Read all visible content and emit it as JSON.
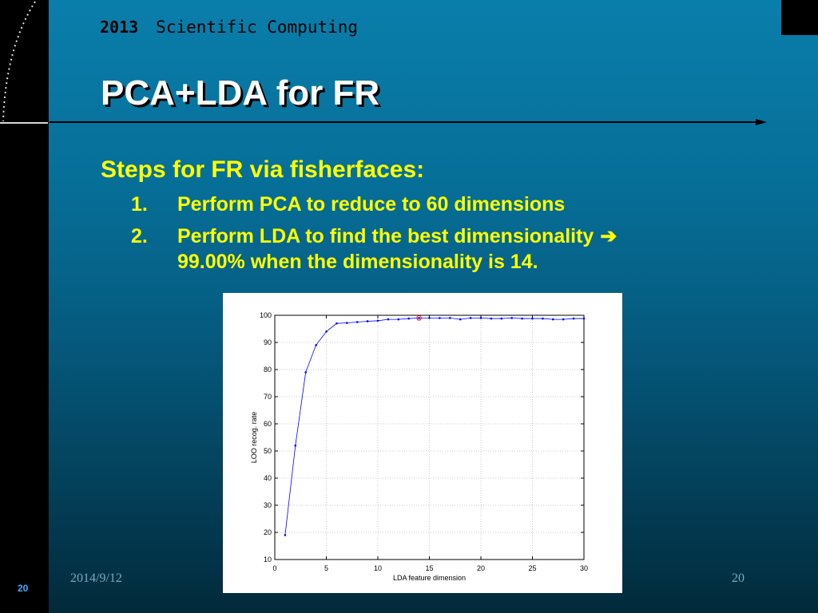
{
  "header": {
    "year": "2013",
    "course": "Scientific Computing"
  },
  "slide": {
    "title": "PCA+LDA for FR",
    "heading": "Steps for FR via fisherfaces:",
    "steps": [
      {
        "num": "1.",
        "text": "Perform PCA to reduce to 60 dimensions"
      },
      {
        "num": "2.",
        "text": "Perform LDA to find the best dimensionality",
        "arrow": "➔",
        "text2": "99.00% when the dimensionality is 14."
      }
    ]
  },
  "footer": {
    "date": "2014/9/12",
    "page": "20",
    "corner_page": "20"
  },
  "chart_data": {
    "type": "line",
    "xlabel": "LDA feature dimension",
    "ylabel": "LOO recog. rate",
    "xlim": [
      0,
      30
    ],
    "ylim": [
      10,
      100
    ],
    "xticks": [
      0,
      5,
      10,
      15,
      20,
      25,
      30
    ],
    "yticks": [
      10,
      20,
      30,
      40,
      50,
      60,
      70,
      80,
      90,
      100
    ],
    "grid": true,
    "series": [
      {
        "color": "#0000ff",
        "marker": "dot",
        "x": [
          1,
          2,
          3,
          4,
          5,
          6,
          7,
          8,
          9,
          10,
          11,
          12,
          13,
          14,
          15,
          16,
          17,
          18,
          19,
          20,
          21,
          22,
          23,
          24,
          25,
          26,
          27,
          28,
          29,
          30
        ],
        "values": [
          19,
          52,
          79,
          89,
          94,
          97,
          97.2,
          97.5,
          97.8,
          98,
          98.5,
          98.5,
          98.8,
          99,
          99,
          99,
          99,
          98.5,
          99,
          99,
          98.8,
          98.8,
          99,
          98.8,
          98.8,
          98.8,
          98.5,
          98.5,
          98.8,
          98.8
        ]
      }
    ],
    "highlight": {
      "x": 14,
      "y": 99,
      "color": "#ff0000"
    }
  }
}
